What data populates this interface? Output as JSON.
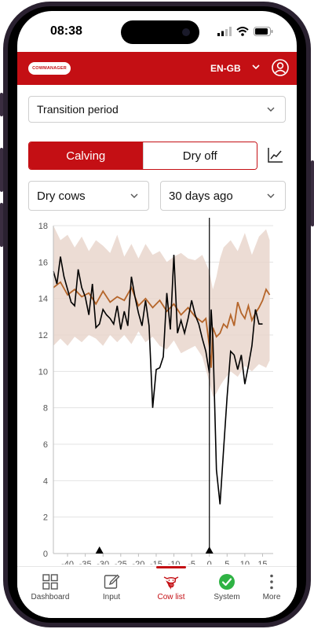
{
  "status": {
    "time": "08:38"
  },
  "header": {
    "logo_text": "COWMANAGER",
    "language": "EN-GB",
    "icons": [
      "chevron-down-icon",
      "user-icon"
    ]
  },
  "filters": {
    "period": "Transition period",
    "segments": [
      {
        "label": "Calving",
        "selected": true
      },
      {
        "label": "Dry off",
        "selected": false
      }
    ],
    "group": "Dry cows",
    "range": "30 days ago"
  },
  "colors": {
    "brand": "#c40f14",
    "band": "#e9d6cc",
    "mean": "#b5652a",
    "cow": "#000000"
  },
  "chart_data": {
    "type": "line",
    "xlim": [
      -44,
      18
    ],
    "ylim": [
      0,
      18
    ],
    "xticks": [
      -40,
      -35,
      -30,
      -25,
      -20,
      -15,
      -10,
      -5,
      0,
      5,
      10,
      15
    ],
    "yticks": [
      0,
      2,
      4,
      6,
      8,
      10,
      12,
      14,
      16,
      18
    ],
    "grid": true,
    "vertical_line_x": 0,
    "markers_x": [
      -31,
      0
    ],
    "series": [
      {
        "role": "band",
        "x": [
          -44,
          -42,
          -40,
          -38,
          -36,
          -34,
          -32,
          -30,
          -28,
          -26,
          -24,
          -22,
          -20,
          -18,
          -16,
          -14,
          -12,
          -10,
          -8,
          -6,
          -4,
          -2,
          0,
          1,
          2,
          3,
          4,
          6,
          8,
          10,
          12,
          14,
          16,
          17
        ],
        "upper": [
          18,
          17.2,
          17.5,
          16.8,
          17.4,
          16.6,
          17.2,
          16.9,
          16.5,
          17.5,
          16.3,
          17,
          16.2,
          17,
          16.4,
          16.6,
          16,
          16.3,
          16.5,
          16.2,
          16.1,
          16.4,
          15.5,
          14.5,
          15.2,
          16.2,
          16.8,
          17.2,
          16.6,
          17.6,
          16.4,
          17.4,
          17.8,
          17.2
        ],
        "lower": [
          11.4,
          11.8,
          11.4,
          11.9,
          11.6,
          12,
          11.8,
          11.4,
          12,
          11.6,
          12,
          11.5,
          12.2,
          11.6,
          11.9,
          11.4,
          11.2,
          11.7,
          11,
          11.2,
          11.4,
          10.8,
          9.4,
          8.6,
          8.8,
          9.2,
          9.5,
          10,
          9.7,
          10.3,
          10,
          10.4,
          10.2,
          10.6
        ]
      },
      {
        "role": "mean",
        "x": [
          -44,
          -42,
          -40,
          -38,
          -36,
          -34,
          -32,
          -30,
          -28,
          -26,
          -24,
          -22,
          -20,
          -18,
          -16,
          -14,
          -12,
          -10,
          -8,
          -6,
          -4,
          -2,
          -1,
          0,
          0.5,
          1,
          2,
          3,
          4,
          5,
          6,
          7,
          8,
          9,
          10,
          11,
          12,
          13,
          14,
          15,
          16,
          17
        ],
        "y": [
          14.6,
          14.9,
          14.2,
          14.5,
          14.1,
          14.3,
          13.7,
          14.4,
          13.8,
          14.1,
          13.9,
          14.6,
          13.6,
          14,
          13.5,
          13.9,
          13.3,
          13.7,
          13.1,
          13.5,
          13,
          12.7,
          12.9,
          11.4,
          10.2,
          12.4,
          11.9,
          12.1,
          12.6,
          12.4,
          13.1,
          12.5,
          13.8,
          13.2,
          12.9,
          13.6,
          12.8,
          13.2,
          13.5,
          13.9,
          14.5,
          14.2
        ]
      },
      {
        "role": "cow",
        "x": [
          -44,
          -43,
          -42,
          -41,
          -40,
          -39,
          -38,
          -37,
          -36,
          -35,
          -34,
          -33,
          -32,
          -31,
          -30,
          -29,
          -28,
          -27,
          -26,
          -25,
          -24,
          -23,
          -22,
          -21,
          -20,
          -19,
          -18,
          -17,
          -16,
          -15,
          -14,
          -13,
          -12,
          -11,
          -10,
          -9,
          -8,
          -7,
          -6,
          -5,
          -4,
          -3,
          -2,
          -1,
          0,
          0.5,
          1,
          2,
          3,
          4,
          5,
          6,
          7,
          8,
          9,
          10,
          11,
          12,
          13,
          14,
          15
        ],
        "y": [
          15.5,
          14.8,
          16.3,
          15.2,
          14.5,
          13.8,
          13.6,
          15.6,
          14.6,
          14.1,
          13.1,
          14.8,
          12.4,
          12.6,
          13.4,
          13.1,
          12.9,
          12.6,
          13.6,
          12.3,
          13.3,
          12.5,
          15.2,
          14.1,
          13.2,
          12.5,
          13.9,
          12.5,
          8.0,
          10.1,
          10.2,
          10.8,
          14.3,
          12.3,
          16.4,
          12.1,
          12.8,
          12.1,
          12.9,
          13.9,
          13.1,
          12.6,
          11.8,
          11.1,
          9.9,
          13.4,
          11.8,
          4.6,
          2.7,
          5.7,
          8.6,
          11.1,
          10.9,
          10.1,
          10.9,
          9.3,
          10.3,
          11.4,
          13.4,
          12.6,
          12.6
        ]
      }
    ]
  },
  "nav": {
    "items": [
      {
        "label": "Dashboard",
        "icon": "dashboard-icon"
      },
      {
        "label": "Input",
        "icon": "edit-icon"
      },
      {
        "label": "Cow list",
        "icon": "cow-icon",
        "active": true
      },
      {
        "label": "System",
        "icon": "check-circle-icon"
      },
      {
        "label": "More",
        "icon": "more-icon"
      }
    ]
  }
}
